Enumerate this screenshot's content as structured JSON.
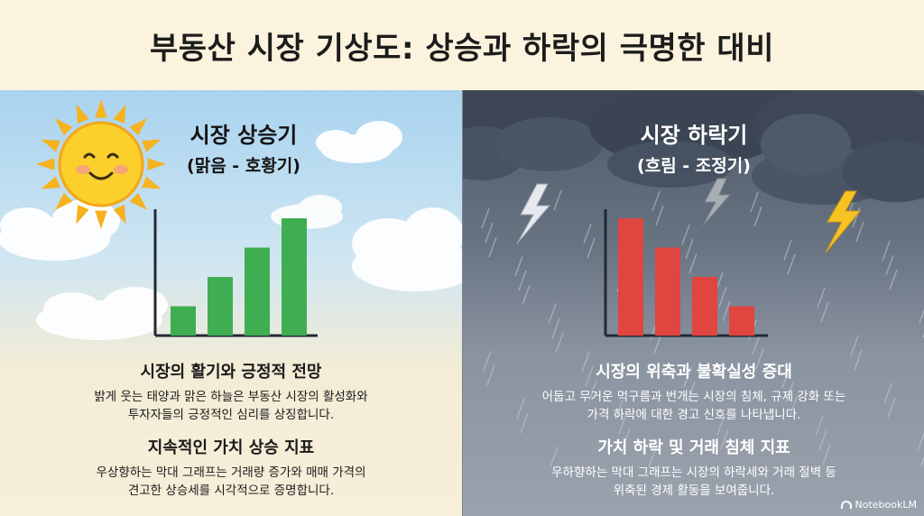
{
  "title": "부동산 시장 기상도: 상승과 하락의 극명한 대비",
  "left": {
    "title": "시장 상승기",
    "subtitle": "(맑음 - 호황기)",
    "section1": {
      "heading": "시장의 활기와 긍정적 전망",
      "line1": "밝게 웃는 태양과 맑은 하늘은 부동산 시장의 활성화와",
      "line2": "투자자들의 긍정적인 심리를 상징합니다."
    },
    "section2": {
      "heading": "지속적인 가치 상승 지표",
      "line1": "우상향하는 막대 그래프는 거래량 증가와 매매 가격의",
      "line2": "견고한 상승세를 시각적으로 증명합니다."
    },
    "icon": "smiling-sun-icon",
    "bar_color": "#3fae52"
  },
  "right": {
    "title": "시장 하락기",
    "subtitle": "(흐림 - 조정기)",
    "section1": {
      "heading": "시장의 위축과 불확실성 증대",
      "line1": "어둡고 무거운 먹구름과 번개는 시장의 침체, 규제 강화 또는",
      "line2": "가격 하락에 대한 경고 신호를 나타냅니다."
    },
    "section2": {
      "heading": "가치 하락 및 거래 침체 지표",
      "line1": "우하향하는 막대 그래프는 시장의 하락세와 거래 절벽 등",
      "line2": "위축된 경제 활동을 보여줍니다."
    },
    "icons": [
      "storm-cloud-icon",
      "lightning-icon",
      "rain-icon"
    ],
    "bar_color": "#e0463f"
  },
  "branding": "NotebookLM",
  "chart_data": [
    {
      "type": "bar",
      "trend": "increasing",
      "values": [
        1,
        2,
        3,
        4
      ]
    },
    {
      "type": "bar",
      "trend": "decreasing",
      "values": [
        4,
        3,
        2,
        1
      ]
    }
  ]
}
